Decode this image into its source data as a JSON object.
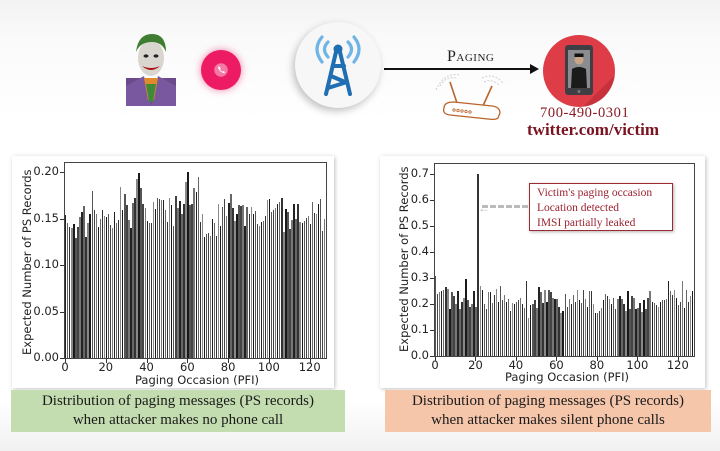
{
  "top_illustration": {
    "attacker_icon": "joker-avatar",
    "call_icon": "phone-call-icon",
    "call_color": "#ec1b63",
    "tower_icon": "cell-tower-icon",
    "tower_color": "#1f6fb2",
    "signal_color": "#6fb4e6",
    "arrow_label": "Paging",
    "router_icon": "router-icon",
    "victim_icon": "victim-phone-icon",
    "victim_circle_color": "#de3d48",
    "victim_phone": "700-490-0301",
    "victim_twitter": "twitter.com/victim"
  },
  "left_panel": {
    "caption_line1": "Distribution of paging messages (PS records)",
    "caption_line2": "when attacker makes no phone call",
    "caption_bg": "#c4ddb0"
  },
  "right_panel": {
    "caption_line1": "Distribution of paging messages (PS records)",
    "caption_line2": "when attacker makes silent phone calls",
    "caption_bg": "#f6c6ab",
    "annotation": {
      "line1": "Victim's paging occasion",
      "line2": "Location detected",
      "line3": "IMSI partially leaked"
    }
  },
  "chart_data": [
    {
      "type": "bar",
      "title": "",
      "xlabel": "Paging Occasion (PFI)",
      "ylabel": "Expected Number of PS Records",
      "xlim": [
        0,
        128
      ],
      "ylim": [
        0,
        0.21
      ],
      "xticks": [
        0,
        20,
        40,
        60,
        80,
        100,
        120
      ],
      "yticks": [
        "0.00",
        "0.05",
        "0.10",
        "0.15",
        "0.20"
      ],
      "grid": false,
      "x": "0..127",
      "values": [
        0.154,
        0.145,
        0.141,
        0.14,
        0.144,
        0.129,
        0.141,
        0.152,
        0.157,
        0.164,
        0.13,
        0.145,
        0.155,
        0.18,
        0.159,
        0.155,
        0.141,
        0.15,
        0.159,
        0.153,
        0.152,
        0.155,
        0.143,
        0.14,
        0.157,
        0.145,
        0.149,
        0.184,
        0.159,
        0.177,
        0.165,
        0.149,
        0.14,
        0.167,
        0.172,
        0.193,
        0.199,
        0.183,
        0.166,
        0.162,
        0.148,
        0.145,
        0.145,
        0.168,
        0.16,
        0.172,
        0.171,
        0.17,
        0.17,
        0.159,
        0.146,
        0.172,
        0.165,
        0.142,
        0.175,
        0.162,
        0.169,
        0.155,
        0.166,
        0.19,
        0.2,
        0.165,
        0.166,
        0.183,
        0.179,
        0.195,
        0.146,
        0.155,
        0.13,
        0.134,
        0.135,
        0.131,
        0.15,
        0.145,
        0.131,
        0.166,
        0.142,
        0.163,
        0.171,
        0.153,
        0.167,
        0.177,
        0.162,
        0.148,
        0.155,
        0.165,
        0.164,
        0.165,
        0.142,
        0.163,
        0.155,
        0.163,
        0.155,
        0.158,
        0.144,
        0.142,
        0.146,
        0.148,
        0.153,
        0.17,
        0.171,
        0.157,
        0.159,
        0.162,
        0.166,
        0.168,
        0.172,
        0.136,
        0.161,
        0.157,
        0.139,
        0.149,
        0.166,
        0.15,
        0.166,
        0.146,
        0.145,
        0.148,
        0.151,
        0.153,
        0.144,
        0.168,
        0.156,
        0.155,
        0.166,
        0.171,
        0.137,
        0.15,
        0.152
      ]
    },
    {
      "type": "bar",
      "title": "",
      "xlabel": "Paging Occasion (PFI)",
      "ylabel": "Expected Number of PS Records",
      "xlim": [
        0,
        128
      ],
      "ylim": [
        0,
        0.74
      ],
      "xticks": [
        0,
        20,
        40,
        60,
        80,
        100,
        120
      ],
      "yticks": [
        "0.0",
        "0.1",
        "0.2",
        "0.3",
        "0.4",
        "0.5",
        "0.6",
        "0.7"
      ],
      "grid": false,
      "x": "0..127",
      "values": [
        0.31,
        0.24,
        0.245,
        0.25,
        0.255,
        0.265,
        0.26,
        0.18,
        0.245,
        0.23,
        0.2,
        0.25,
        0.18,
        0.21,
        0.225,
        0.295,
        0.215,
        0.19,
        0.2,
        0.25,
        0.19,
        0.7,
        0.27,
        0.255,
        0.2,
        0.18,
        0.245,
        0.245,
        0.205,
        0.235,
        0.26,
        0.21,
        0.27,
        0.215,
        0.235,
        0.21,
        0.22,
        0.175,
        0.205,
        0.2,
        0.21,
        0.215,
        0.225,
        0.2,
        0.185,
        0.29,
        0.145,
        0.195,
        0.2,
        0.215,
        0.185,
        0.265,
        0.245,
        0.205,
        0.255,
        0.21,
        0.255,
        0.245,
        0.225,
        0.22,
        0.22,
        0.19,
        0.165,
        0.175,
        0.24,
        0.19,
        0.22,
        0.2,
        0.235,
        0.21,
        0.255,
        0.215,
        0.205,
        0.255,
        0.22,
        0.19,
        0.25,
        0.25,
        0.2,
        0.165,
        0.165,
        0.175,
        0.185,
        0.215,
        0.24,
        0.23,
        0.22,
        0.2,
        0.225,
        0.18,
        0.22,
        0.23,
        0.22,
        0.2,
        0.175,
        0.25,
        0.18,
        0.23,
        0.225,
        0.18,
        0.185,
        0.205,
        0.17,
        0.215,
        0.18,
        0.225,
        0.25,
        0.21,
        0.205,
        0.195,
        0.19,
        0.21,
        0.215,
        0.215,
        0.22,
        0.29,
        0.25,
        0.235,
        0.255,
        0.225,
        0.195,
        0.21,
        0.29,
        0.185,
        0.255,
        0.21,
        0.23,
        0.25
      ]
    }
  ]
}
